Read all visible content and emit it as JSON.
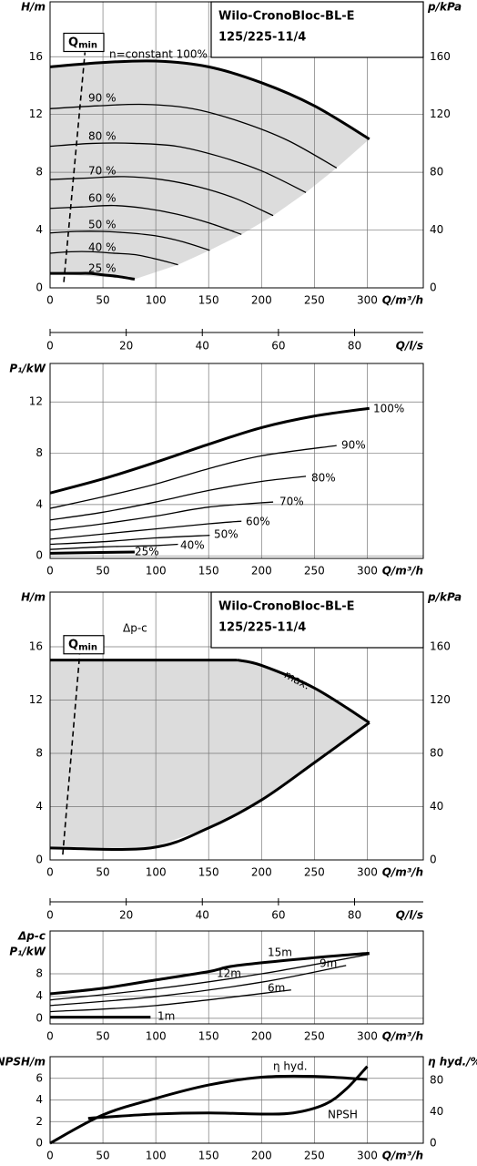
{
  "chart_data": [
    {
      "type": "line",
      "title": [
        "Wilo-CronoBloc-BL-E",
        "125/225-11/4"
      ],
      "x_label": "Q/m³/h",
      "y_label": "H/m",
      "y2_label": "p/kPa",
      "xlim": [
        0,
        353
      ],
      "ylim": [
        0,
        19.8
      ],
      "y2lim": [
        0,
        198
      ],
      "xticks": [
        0,
        50,
        100,
        150,
        200,
        250,
        300
      ],
      "yticks": [
        0,
        4,
        8,
        12,
        16
      ],
      "y2ticks": [
        0,
        40,
        80,
        120,
        160
      ],
      "grid": true,
      "shade_color": "#dcdcdc",
      "shade_mode": "curve-ends",
      "qmin": {
        "label": "Q",
        "subscript": "min",
        "x": [
          13,
          33
        ],
        "y": [
          0.4,
          16.3
        ]
      },
      "series": [
        {
          "name": "n=constant 100%",
          "color": "#000000",
          "bold": true,
          "x": [
            0,
            50,
            100,
            150,
            200,
            250,
            302
          ],
          "y": [
            15.3,
            15.6,
            15.7,
            15.3,
            14.2,
            12.6,
            10.3
          ]
        },
        {
          "name": "90 %",
          "color": "#000000",
          "x": [
            0,
            45,
            90,
            135,
            180,
            225,
            271
          ],
          "y": [
            12.4,
            12.6,
            12.7,
            12.4,
            11.5,
            10.2,
            8.3
          ]
        },
        {
          "name": "80 %",
          "color": "#000000",
          "x": [
            0,
            40,
            80,
            120,
            160,
            200,
            242
          ],
          "y": [
            9.8,
            10.0,
            10.0,
            9.8,
            9.1,
            8.1,
            6.6
          ]
        },
        {
          "name": "70 %",
          "color": "#000000",
          "x": [
            0,
            35,
            70,
            105,
            140,
            175,
            211
          ],
          "y": [
            7.5,
            7.6,
            7.7,
            7.5,
            7.0,
            6.2,
            5.0
          ]
        },
        {
          "name": "60 %",
          "color": "#000000",
          "x": [
            0,
            30,
            60,
            90,
            120,
            150,
            181
          ],
          "y": [
            5.5,
            5.6,
            5.7,
            5.5,
            5.1,
            4.5,
            3.7
          ]
        },
        {
          "name": "50 %",
          "color": "#000000",
          "x": [
            0,
            25,
            50,
            75,
            100,
            125,
            151
          ],
          "y": [
            3.8,
            3.9,
            3.9,
            3.8,
            3.6,
            3.2,
            2.6
          ]
        },
        {
          "name": "40 %",
          "color": "#000000",
          "x": [
            0,
            20,
            40,
            60,
            80,
            100,
            121
          ],
          "y": [
            2.4,
            2.5,
            2.5,
            2.4,
            2.3,
            2.0,
            1.6
          ]
        },
        {
          "name": "25 %",
          "color": "#000000",
          "bold": true,
          "x": [
            0,
            13,
            25,
            38,
            50,
            63,
            80
          ],
          "y": [
            1.0,
            1.0,
            1.0,
            1.0,
            0.9,
            0.8,
            0.6
          ]
        }
      ]
    },
    {
      "type": "axis",
      "x_label": "Q/l/s",
      "xlim": [
        0,
        98.06
      ],
      "xticks": [
        0,
        20,
        40,
        60,
        80
      ]
    },
    {
      "type": "line",
      "x_label": "Q/m³/h",
      "y_label": "P₁/kW",
      "xlim": [
        0,
        353
      ],
      "ylim": [
        -0.2,
        15
      ],
      "xticks": [
        0,
        50,
        100,
        150,
        200,
        250,
        300
      ],
      "yticks": [
        0,
        4,
        8,
        12
      ],
      "grid": true,
      "series": [
        {
          "name": "100%",
          "color": "#000000",
          "bold": true,
          "x": [
            0,
            50,
            100,
            150,
            200,
            250,
            302
          ],
          "y": [
            4.9,
            6.0,
            7.3,
            8.7,
            10.0,
            10.9,
            11.5
          ]
        },
        {
          "name": "90%",
          "color": "#000000",
          "x": [
            0,
            50,
            100,
            150,
            200,
            271
          ],
          "y": [
            3.7,
            4.6,
            5.6,
            6.8,
            7.8,
            8.6
          ]
        },
        {
          "name": "80%",
          "color": "#000000",
          "x": [
            0,
            50,
            100,
            150,
            200,
            242
          ],
          "y": [
            2.8,
            3.4,
            4.2,
            5.1,
            5.8,
            6.2
          ]
        },
        {
          "name": "70%",
          "color": "#000000",
          "x": [
            0,
            50,
            100,
            150,
            211
          ],
          "y": [
            2.0,
            2.5,
            3.1,
            3.8,
            4.2
          ]
        },
        {
          "name": "60%",
          "color": "#000000",
          "x": [
            0,
            50,
            100,
            150,
            181
          ],
          "y": [
            1.3,
            1.7,
            2.1,
            2.5,
            2.7
          ]
        },
        {
          "name": "50%",
          "color": "#000000",
          "x": [
            0,
            50,
            100,
            151
          ],
          "y": [
            0.9,
            1.1,
            1.4,
            1.6
          ]
        },
        {
          "name": "40%",
          "color": "#000000",
          "x": [
            0,
            50,
            100,
            121
          ],
          "y": [
            0.5,
            0.7,
            0.8,
            0.9
          ]
        },
        {
          "name": "25%",
          "color": "#000000",
          "bold": true,
          "x": [
            0,
            40,
            80
          ],
          "y": [
            0.2,
            0.25,
            0.3
          ]
        }
      ]
    },
    {
      "type": "line",
      "title": [
        "Wilo-CronoBloc-BL-E",
        "125/225-11/4"
      ],
      "x_label": "Q/m³/h",
      "y_label": "H/m",
      "y2_label": "p/kPa",
      "xlim": [
        0,
        353
      ],
      "ylim": [
        0,
        20.1
      ],
      "y2lim": [
        0,
        201
      ],
      "xticks": [
        0,
        50,
        100,
        150,
        200,
        250,
        300
      ],
      "yticks": [
        0,
        4,
        8,
        12,
        16
      ],
      "y2ticks": [
        0,
        40,
        80,
        120,
        160
      ],
      "grid": true,
      "shade_color": "#dcdcdc",
      "shade_mode": "outline",
      "qmin": {
        "label": "Q",
        "subscript": "min",
        "x": [
          12,
          28
        ],
        "y": [
          0.4,
          15.4
        ]
      },
      "series": [
        {
          "name": "Δp-c",
          "color": "#000000",
          "bold": true,
          "x": [
            0,
            177
          ],
          "y": [
            15,
            15
          ]
        },
        {
          "name": "max.",
          "color": "#000000",
          "bold": true,
          "x": [
            177,
            200,
            250,
            302
          ],
          "y": [
            15,
            14.6,
            12.9,
            10.3
          ]
        },
        {
          "color": "#000000",
          "bold": true,
          "x": [
            0,
            95,
            150,
            200,
            250,
            302
          ],
          "y": [
            0.9,
            0.9,
            2.4,
            4.5,
            7.3,
            10.3
          ]
        }
      ]
    },
    {
      "type": "axis",
      "x_label": "Q/l/s",
      "xlim": [
        0,
        98.06
      ],
      "xticks": [
        0,
        20,
        40,
        60,
        80
      ]
    },
    {
      "type": "line",
      "x_label": "Q/m³/h",
      "y_label": [
        "Δp-c",
        "P₁/kW"
      ],
      "xlim": [
        0,
        353
      ],
      "ylim": [
        -1,
        15.7
      ],
      "xticks": [
        0,
        50,
        100,
        150,
        200,
        250,
        300
      ],
      "yticks": [
        0,
        4,
        8
      ],
      "grid": true,
      "series": [
        {
          "name": "15m",
          "color": "#000000",
          "bold": true,
          "x": [
            0,
            50,
            100,
            150,
            177,
            250,
            302
          ],
          "y": [
            4.4,
            5.4,
            6.9,
            8.4,
            9.5,
            10.9,
            11.7
          ]
        },
        {
          "name": "12m",
          "color": "#000000",
          "x": [
            0,
            100,
            200,
            302
          ],
          "y": [
            3.3,
            5.3,
            8.0,
            11.5
          ]
        },
        {
          "name": "9m",
          "color": "#000000",
          "x": [
            0,
            100,
            200,
            280
          ],
          "y": [
            2.3,
            3.9,
            6.5,
            9.5
          ]
        },
        {
          "name": "6m",
          "color": "#000000",
          "x": [
            0,
            100,
            228
          ],
          "y": [
            1.2,
            2.3,
            5.1
          ]
        },
        {
          "name": "1m",
          "color": "#000000",
          "bold": true,
          "x": [
            0,
            95
          ],
          "y": [
            0.2,
            0.2
          ]
        }
      ]
    },
    {
      "type": "line",
      "x_label": "Q/m³/h",
      "y_label": "NPSH/m",
      "y2_label": "η hyd./%",
      "xlim": [
        0,
        353
      ],
      "ylim": [
        0,
        8.0
      ],
      "y2lim": [
        0,
        110
      ],
      "xticks": [
        0,
        50,
        100,
        150,
        200,
        250,
        300
      ],
      "yticks": [
        0,
        2,
        4,
        6
      ],
      "y2ticks": [
        0,
        40,
        80
      ],
      "grid": true,
      "series": [
        {
          "name": "η hyd.",
          "color": "#000000",
          "bold": true,
          "axis": "y2",
          "x": [
            0,
            50,
            100,
            150,
            200,
            250,
            300
          ],
          "y": [
            0,
            36,
            57,
            74,
            84,
            85,
            81
          ]
        },
        {
          "name": "NPSH",
          "color": "#000000",
          "bold": true,
          "x": [
            36,
            50,
            100,
            150,
            200,
            230,
            260,
            280,
            300
          ],
          "y": [
            2.3,
            2.4,
            2.7,
            2.8,
            2.7,
            2.8,
            3.6,
            5.0,
            7.1
          ]
        }
      ]
    }
  ]
}
